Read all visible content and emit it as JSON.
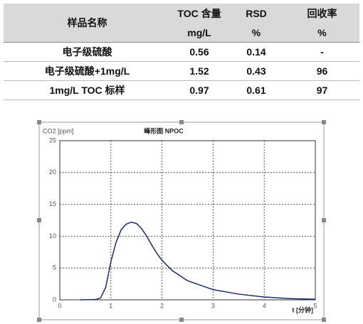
{
  "table": {
    "header": [
      [
        "样品名称"
      ],
      [
        "TOC 含量",
        "mg/L"
      ],
      [
        "RSD",
        "%"
      ],
      [
        "回收率",
        "%"
      ]
    ],
    "rows": [
      [
        "电子级硫酸",
        "0.56",
        "0.14",
        "-"
      ],
      [
        "电子级硫酸+1mg/L",
        "1.52",
        "0.43",
        "96"
      ],
      [
        "1mg/L TOC 标样",
        "0.97",
        "0.61",
        "97"
      ]
    ]
  },
  "chart_data": {
    "type": "line",
    "title": "峰形图 NPOC",
    "y_label": "CO2 [ppm]",
    "x_label": "t [分钟]",
    "x": [
      0.4,
      0.7,
      0.8,
      0.9,
      1.0,
      1.1,
      1.2,
      1.3,
      1.4,
      1.5,
      1.6,
      1.7,
      1.8,
      1.9,
      2.0,
      2.2,
      2.5,
      3.0,
      3.5,
      4.0,
      4.5,
      5.0
    ],
    "values": [
      0,
      0.05,
      0.3,
      2,
      6,
      9,
      11,
      11.9,
      12.2,
      12,
      11.2,
      10,
      8.6,
      7.3,
      6.2,
      4.6,
      3,
      1.6,
      0.9,
      0.45,
      0.2,
      0.1
    ],
    "color": "#1f2a6b",
    "xlim": [
      0,
      5
    ],
    "ylim": [
      0,
      25
    ],
    "xticks": [
      0,
      1,
      2,
      3,
      4,
      5
    ],
    "yticks": [
      0,
      5,
      10,
      15,
      20,
      25
    ],
    "grid": true
  }
}
